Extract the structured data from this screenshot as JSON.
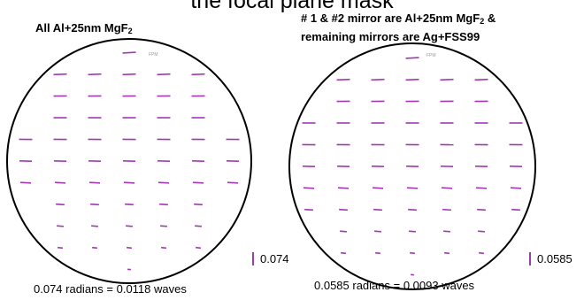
{
  "slide": {
    "title": "the focal plane mask"
  },
  "colors": {
    "vector": "#a239b2",
    "circle": "#000000"
  },
  "left_panel": {
    "title_text": "All Al+25nm MgF",
    "title_sub": "2",
    "tiny_label": "FPM",
    "scale_value": "0.074",
    "caption": "0.074 radians = 0.0118 waves"
  },
  "right_panel": {
    "title_line1_text": "# 1 & #2 mirror are Al+25nm MgF",
    "title_line1_sub": "2",
    "title_line1_tail": " &",
    "title_line2": "remaining mirrors are Ag+FSS99",
    "tiny_label": "FPM",
    "scale_value": "0.0585",
    "caption": "0.0585 radians = 0.0093 waves"
  }
}
